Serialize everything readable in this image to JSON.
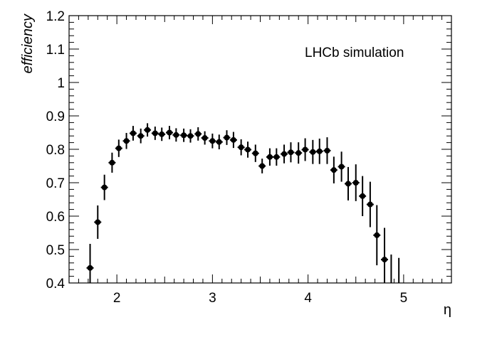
{
  "chart_data": {
    "type": "scatter",
    "title": "",
    "xlabel": "η",
    "ylabel": "efficiency",
    "annotation": "LHCb simulation",
    "xlim": [
      1.5,
      5.5
    ],
    "ylim": [
      0.4,
      1.2
    ],
    "xticks": [
      {
        "value": 2,
        "label": "2"
      },
      {
        "value": 3,
        "label": "3"
      },
      {
        "value": 4,
        "label": "4"
      },
      {
        "value": 5,
        "label": "5"
      }
    ],
    "yticks": [
      {
        "value": 0.4,
        "label": "0.4"
      },
      {
        "value": 0.5,
        "label": "0.5"
      },
      {
        "value": 0.6,
        "label": "0.6"
      },
      {
        "value": 0.7,
        "label": "0.7"
      },
      {
        "value": 0.8,
        "label": "0.8"
      },
      {
        "value": 0.9,
        "label": "0.9"
      },
      {
        "value": 1.0,
        "label": "1"
      },
      {
        "value": 1.1,
        "label": "1.1"
      },
      {
        "value": 1.2,
        "label": "1.2"
      }
    ],
    "grid": false,
    "error_bars": true,
    "marker_color": "#000000",
    "series": [
      {
        "x": [
          1.72,
          1.8,
          1.87,
          1.95,
          2.02,
          2.1,
          2.17,
          2.25,
          2.32,
          2.4,
          2.47,
          2.55,
          2.62,
          2.7,
          2.77,
          2.85,
          2.92,
          3.0,
          3.07,
          3.15,
          3.22,
          3.3,
          3.37,
          3.45,
          3.52,
          3.6,
          3.67,
          3.75,
          3.82,
          3.9,
          3.97,
          4.05,
          4.12,
          4.2,
          4.27,
          4.35,
          4.42,
          4.5,
          4.57,
          4.65,
          4.72,
          4.8,
          4.87,
          4.95
        ],
        "y": [
          0.445,
          0.582,
          0.686,
          0.76,
          0.803,
          0.825,
          0.848,
          0.84,
          0.858,
          0.848,
          0.845,
          0.85,
          0.843,
          0.842,
          0.84,
          0.846,
          0.834,
          0.825,
          0.822,
          0.835,
          0.828,
          0.806,
          0.799,
          0.788,
          0.75,
          0.777,
          0.777,
          0.786,
          0.791,
          0.789,
          0.799,
          0.792,
          0.794,
          0.796,
          0.738,
          0.748,
          0.697,
          0.7,
          0.66,
          0.635,
          0.543,
          0.47,
          0.375,
          0.355
        ],
        "y_err": [
          0.072,
          0.05,
          0.038,
          0.03,
          0.026,
          0.024,
          0.022,
          0.022,
          0.02,
          0.02,
          0.02,
          0.02,
          0.02,
          0.02,
          0.02,
          0.02,
          0.02,
          0.022,
          0.022,
          0.022,
          0.024,
          0.024,
          0.024,
          0.026,
          0.022,
          0.026,
          0.026,
          0.028,
          0.03,
          0.032,
          0.034,
          0.036,
          0.038,
          0.04,
          0.04,
          0.045,
          0.05,
          0.055,
          0.06,
          0.068,
          0.09,
          0.095,
          0.11,
          0.12
        ]
      }
    ]
  }
}
